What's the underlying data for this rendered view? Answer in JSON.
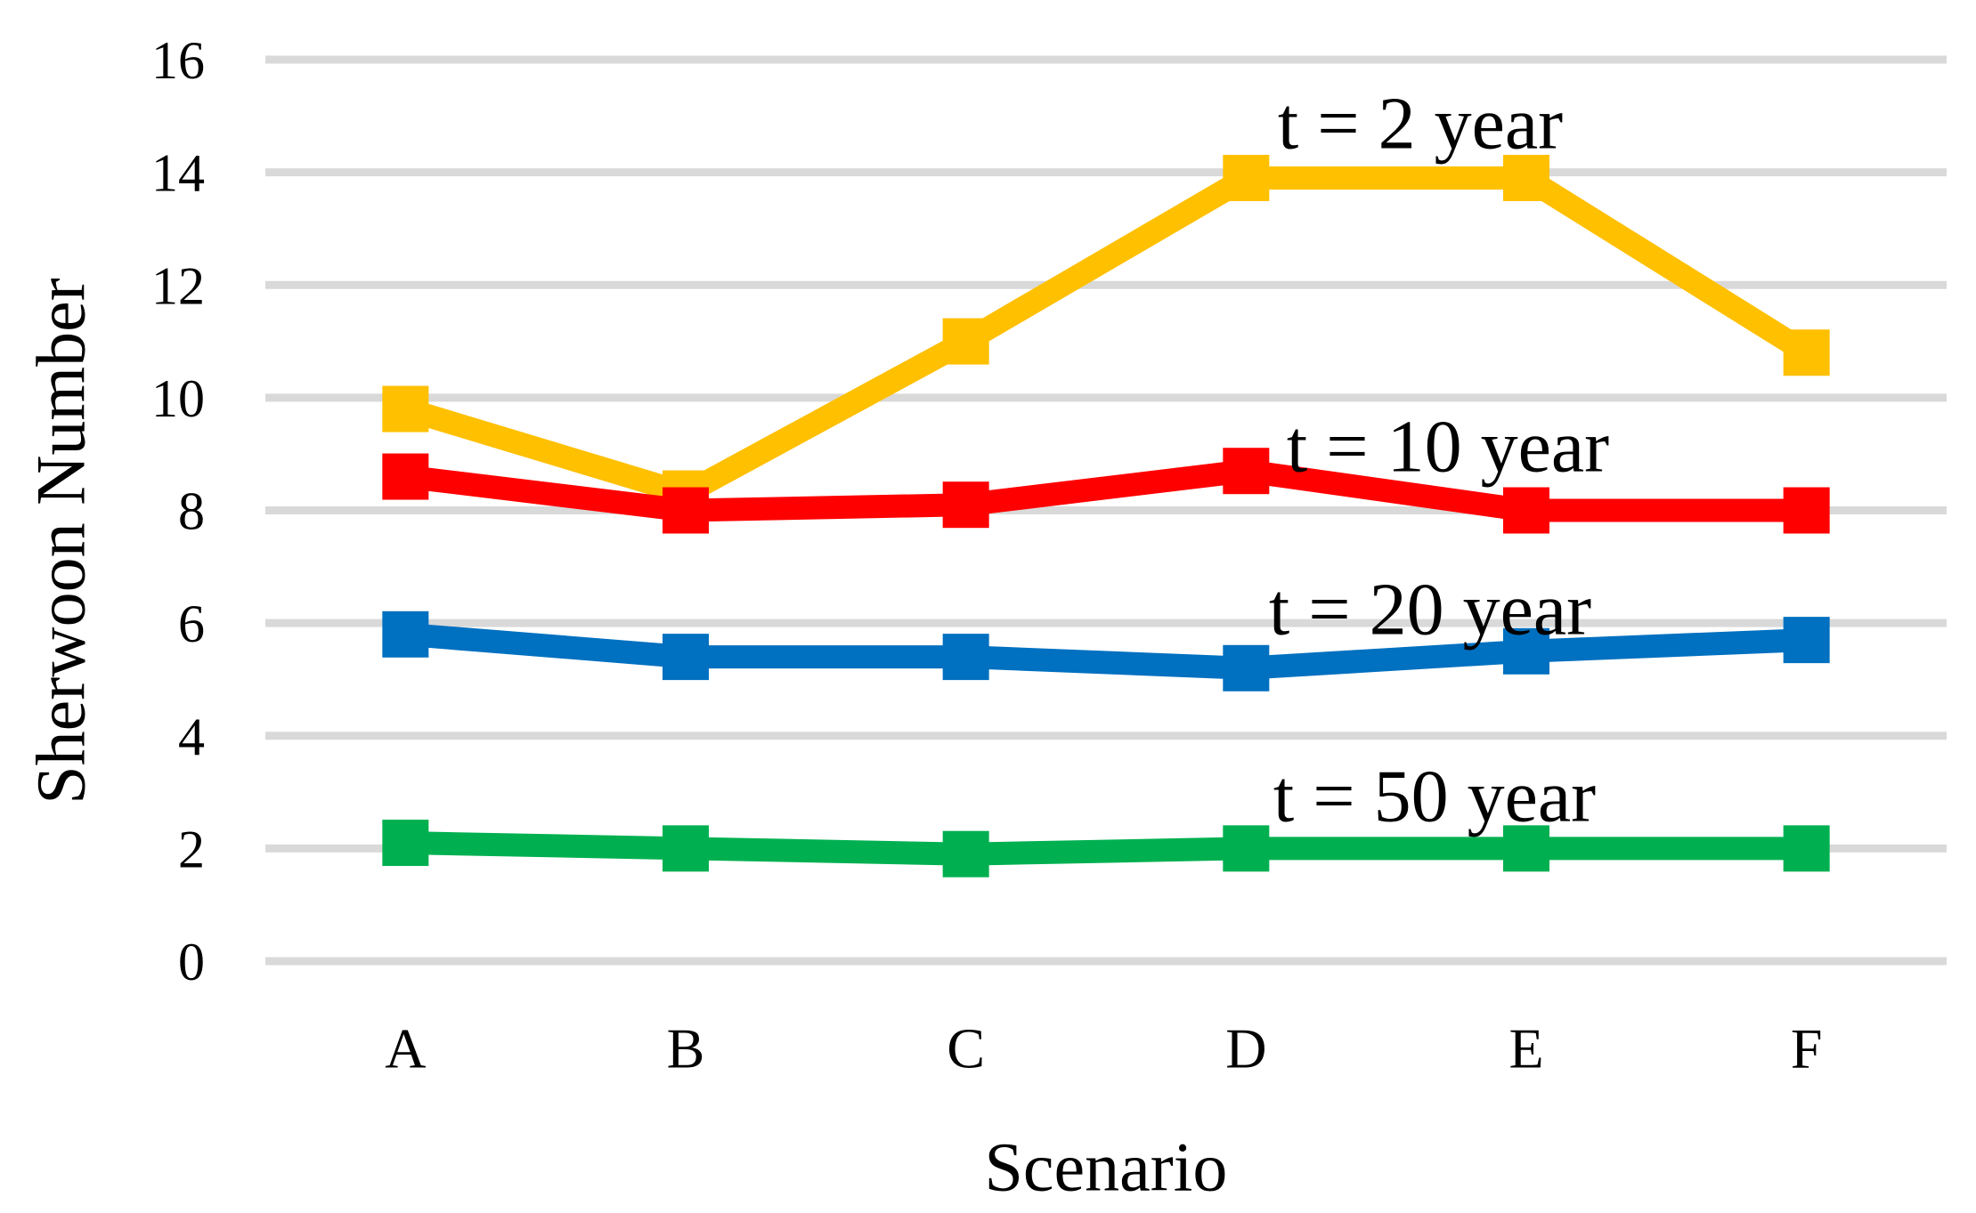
{
  "figure": {
    "background": "#FFFFFF",
    "gridline_color": "#D9D9D9",
    "text_color": "#000000"
  },
  "chart_data": {
    "type": "line",
    "title": "",
    "xlabel": "Scenario",
    "ylabel": "Sherwoon Number",
    "categories": [
      "A",
      "B",
      "C",
      "D",
      "E",
      "F"
    ],
    "series": [
      {
        "name": "t = 2 year",
        "color": "#FFC000",
        "values": [
          9.8,
          8.3,
          11.0,
          13.9,
          13.9,
          10.8
        ]
      },
      {
        "name": "t = 10 year",
        "color": "#FF0000",
        "values": [
          8.6,
          8.0,
          8.1,
          8.7,
          8.0,
          8.0
        ]
      },
      {
        "name": "t = 20 year",
        "color": "#0070C0",
        "values": [
          5.8,
          5.4,
          5.4,
          5.2,
          5.5,
          5.7
        ]
      },
      {
        "name": "t = 50 year",
        "color": "#00B050",
        "values": [
          2.1,
          2.0,
          1.9,
          2.0,
          2.0,
          2.0
        ]
      }
    ],
    "ylim": [
      0,
      16
    ],
    "ytick_step": 2,
    "yticks": [
      0,
      2,
      4,
      6,
      8,
      10,
      12,
      14,
      16
    ],
    "grid": true,
    "legend_position": "inline-labels-right-of-center",
    "marker": "square"
  }
}
